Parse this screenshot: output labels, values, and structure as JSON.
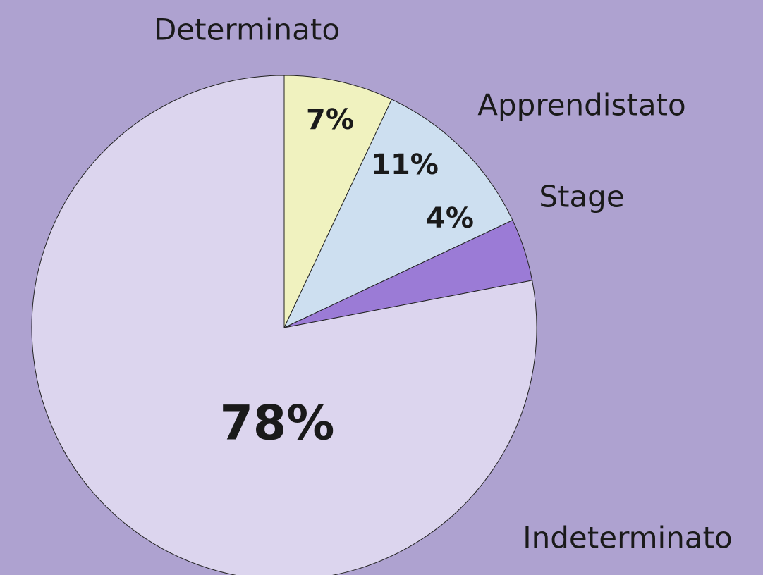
{
  "chart_data": {
    "type": "pie",
    "categories": [
      "Determinato",
      "Apprendistato",
      "Stage",
      "Indeterminato"
    ],
    "values": [
      7,
      11,
      4,
      78
    ],
    "value_labels": [
      "7%",
      "11%",
      "4%",
      "78%"
    ],
    "colors": [
      "#f0f2bf",
      "#cddff0",
      "#9b7bd6",
      "#dcd5ee"
    ]
  }
}
